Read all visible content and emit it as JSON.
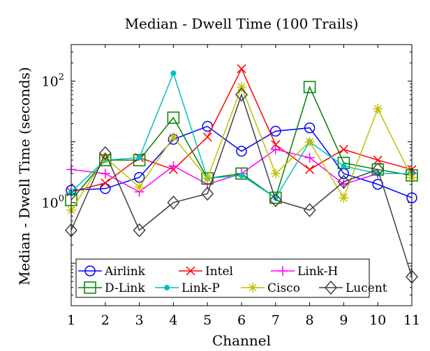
{
  "chart_data": {
    "type": "line",
    "title": "Median - Dwell Time (100 Trails)",
    "xlabel": "Channel",
    "ylabel": "Median - Dwell Time (seconds)",
    "x": [
      1,
      2,
      3,
      4,
      5,
      6,
      7,
      8,
      9,
      10,
      11
    ],
    "xlim": [
      1,
      11
    ],
    "y_scale": "log",
    "ylim": [
      0.02,
      400
    ],
    "y_ticks": [
      {
        "value": 1,
        "base": "10",
        "exp": "0"
      },
      {
        "value": 100,
        "base": "10",
        "exp": "2"
      }
    ],
    "grid": false,
    "legend_position": "bottom-left",
    "series": [
      {
        "name": "Airlink",
        "color": "#0000ff",
        "marker": "circle",
        "values": [
          1.6,
          1.7,
          2.6,
          11,
          18,
          7,
          15,
          17,
          3,
          2,
          1.2
        ]
      },
      {
        "name": "Intel",
        "color": "#ff0000",
        "marker": "x",
        "values": [
          1.5,
          2.1,
          5.5,
          3.5,
          12,
          160,
          9,
          3.5,
          7.5,
          5,
          3.5
        ]
      },
      {
        "name": "Link-H",
        "color": "#ff00ff",
        "marker": "plus",
        "values": [
          3.5,
          3,
          1.5,
          4,
          2,
          3,
          7.5,
          5.5,
          2,
          3,
          3
        ]
      },
      {
        "name": "D-Link",
        "color": "#008000",
        "marker": "square",
        "values": [
          1.1,
          5,
          5,
          25,
          2.5,
          3,
          1.2,
          80,
          4.5,
          3.5,
          2.8
        ]
      },
      {
        "name": "Link-P",
        "color": "#00c0c0",
        "marker": "dot",
        "values": [
          1.5,
          5,
          5.5,
          135,
          2.5,
          2.8,
          1.2,
          10,
          4,
          3,
          3
        ]
      },
      {
        "name": "Cisco",
        "color": "#c0c000",
        "marker": "star",
        "values": [
          0.75,
          5.5,
          1.8,
          12,
          2.5,
          80,
          3,
          10,
          1.2,
          35,
          2.6
        ]
      },
      {
        "name": "Lucent",
        "color": "#404040",
        "marker": "diamond",
        "values": [
          0.35,
          6.5,
          0.35,
          1,
          1.4,
          60,
          1.1,
          0.75,
          2.2,
          3.5,
          0.06
        ]
      }
    ]
  }
}
